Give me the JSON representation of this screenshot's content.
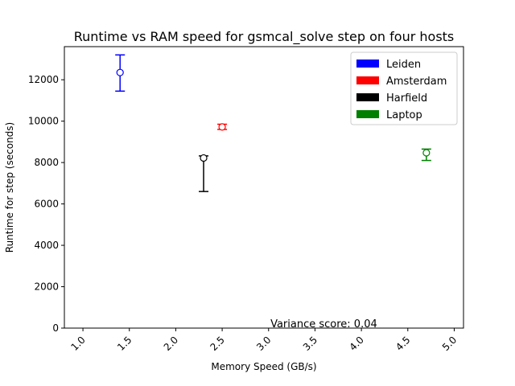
{
  "chart_data": {
    "type": "scatter",
    "title": "Runtime vs RAM speed for gsmcal_solve step on four hosts",
    "xlabel": "Memory Speed (GB/s)",
    "ylabel": "Runtime for step (seconds)",
    "xlim": [
      0.8,
      5.1
    ],
    "ylim": [
      0,
      13600
    ],
    "x_ticks": [
      1.0,
      1.5,
      2.0,
      2.5,
      3.0,
      3.5,
      4.0,
      4.5,
      5.0
    ],
    "x_tick_labels": [
      "1.0",
      "1.5",
      "2.0",
      "2.5",
      "3.0",
      "3.5",
      "4.0",
      "4.5",
      "5.0"
    ],
    "y_ticks": [
      0,
      2000,
      4000,
      6000,
      8000,
      10000,
      12000
    ],
    "y_tick_labels": [
      "0",
      "2000",
      "4000",
      "6000",
      "8000",
      "10000",
      "12000"
    ],
    "grid": false,
    "legend_position": "top-right",
    "series": [
      {
        "name": "Leiden",
        "color": "#0000ff",
        "x": 1.4,
        "y": 12350,
        "err_low": 11450,
        "err_high": 13200
      },
      {
        "name": "Amsterdam",
        "color": "#ff0000",
        "x": 2.5,
        "y": 9720,
        "err_low": 9600,
        "err_high": 9850
      },
      {
        "name": "Harfield",
        "color": "#000000",
        "x": 2.3,
        "y": 8220,
        "err_low": 6600,
        "err_high": 8320
      },
      {
        "name": "Laptop",
        "color": "#008000",
        "x": 4.7,
        "y": 8470,
        "err_low": 8100,
        "err_high": 8650
      }
    ],
    "annotation": "Variance score: 0.04",
    "annotation_x": 3.02,
    "annotation_y": 0
  }
}
